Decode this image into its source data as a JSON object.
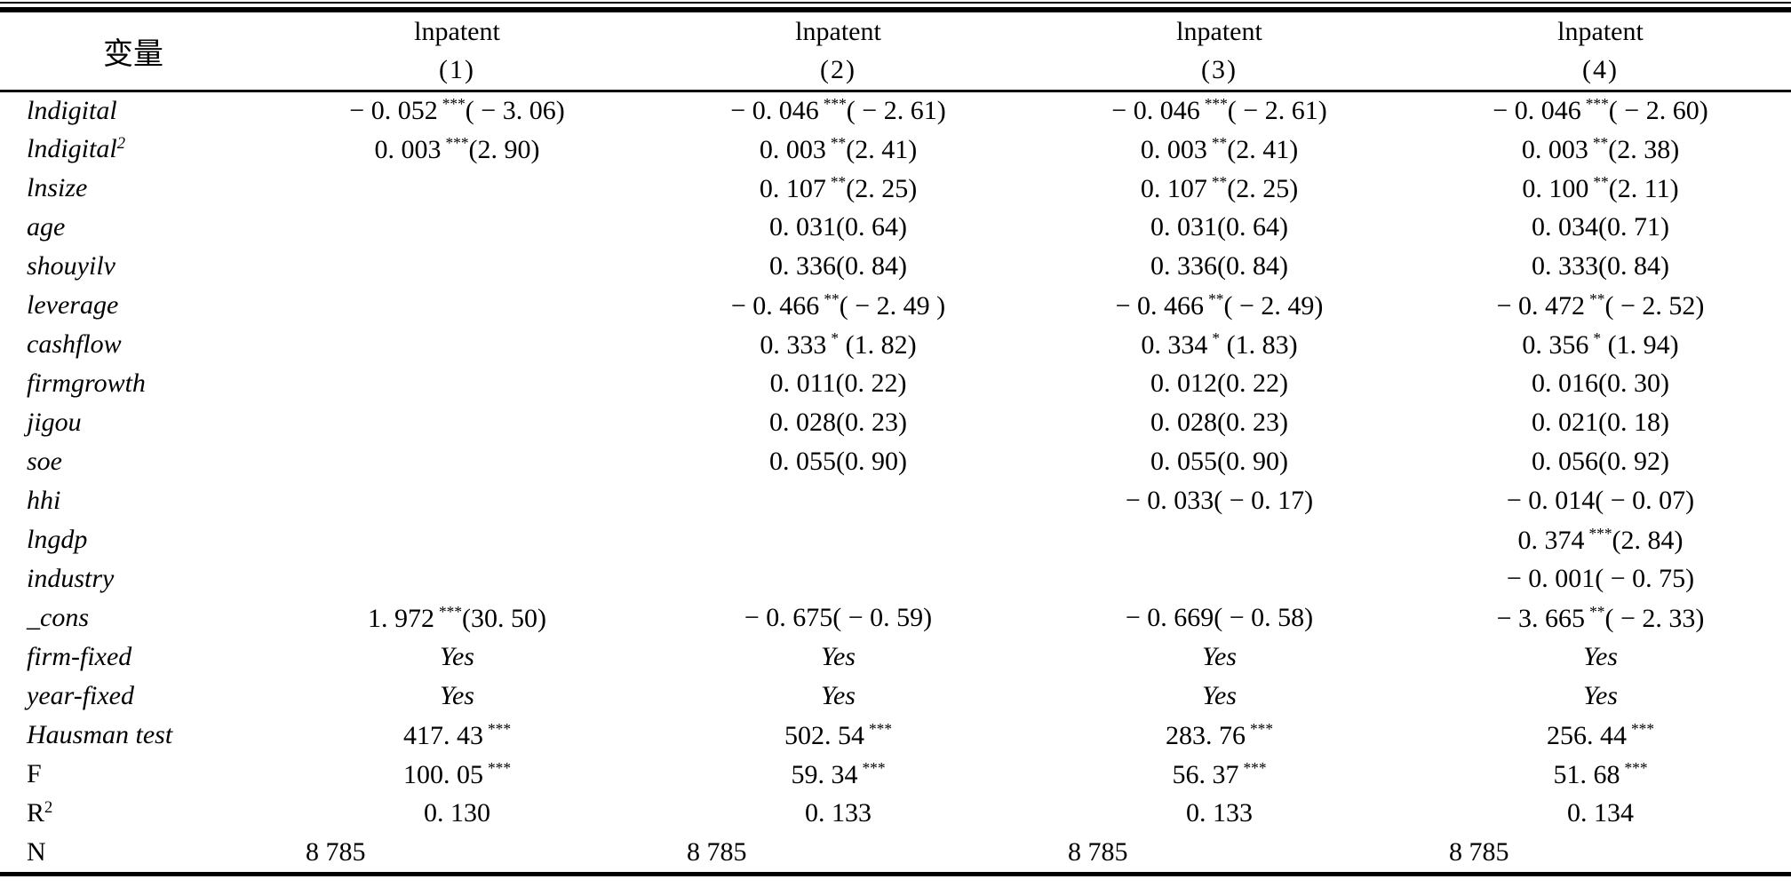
{
  "table": {
    "header": {
      "var_label": "变量",
      "dep_label": "lnpatent",
      "col_numbers": [
        "(1)",
        "(2)",
        "(3)",
        "(4)"
      ]
    },
    "rows": [
      {
        "key": "lndigital",
        "label": "lndigital",
        "sup": "",
        "cells": [
          {
            "coef": "− 0. 052",
            "stars": "***",
            "t": "( − 3. 06)"
          },
          {
            "coef": "− 0. 046",
            "stars": "***",
            "t": "( − 2. 61)"
          },
          {
            "coef": "− 0. 046",
            "stars": "***",
            "t": "( − 2. 61)"
          },
          {
            "coef": "− 0. 046",
            "stars": "***",
            "t": "( − 2. 60)"
          }
        ]
      },
      {
        "key": "lndigital-sq",
        "label": "lndigital",
        "sup": "2",
        "cells": [
          {
            "coef": "0. 003",
            "stars": "***",
            "t": "(2. 90)"
          },
          {
            "coef": "0. 003",
            "stars": "**",
            "t": "(2. 41)"
          },
          {
            "coef": "0. 003",
            "stars": "**",
            "t": "(2. 41)"
          },
          {
            "coef": "0. 003",
            "stars": "**",
            "t": "(2. 38)"
          }
        ]
      },
      {
        "key": "lnsize",
        "label": "lnsize",
        "sup": "",
        "cells": [
          null,
          {
            "coef": "0. 107",
            "stars": "**",
            "t": "(2. 25)"
          },
          {
            "coef": "0. 107",
            "stars": "**",
            "t": "(2. 25)"
          },
          {
            "coef": "0. 100",
            "stars": "**",
            "t": "(2. 11)"
          }
        ]
      },
      {
        "key": "age",
        "label": "age",
        "sup": "",
        "cells": [
          null,
          {
            "coef": "0. 031",
            "stars": "",
            "t": "(0. 64)"
          },
          {
            "coef": "0. 031",
            "stars": "",
            "t": "(0. 64)"
          },
          {
            "coef": "0. 034",
            "stars": "",
            "t": "(0. 71)"
          }
        ]
      },
      {
        "key": "shouyilv",
        "label": "shouyilv",
        "sup": "",
        "cells": [
          null,
          {
            "coef": "0. 336",
            "stars": "",
            "t": "(0. 84)"
          },
          {
            "coef": "0. 336",
            "stars": "",
            "t": "(0. 84)"
          },
          {
            "coef": "0. 333",
            "stars": "",
            "t": "(0. 84)"
          }
        ]
      },
      {
        "key": "leverage",
        "label": "leverage",
        "sup": "",
        "cells": [
          null,
          {
            "coef": "− 0. 466",
            "stars": "**",
            "t": "( − 2. 49 )"
          },
          {
            "coef": "− 0. 466",
            "stars": "**",
            "t": "( − 2. 49)"
          },
          {
            "coef": "− 0. 472",
            "stars": "**",
            "t": "( − 2. 52)"
          }
        ]
      },
      {
        "key": "cashflow",
        "label": "cashflow",
        "sup": "",
        "cells": [
          null,
          {
            "coef": "0. 333",
            "stars": "*",
            "t": " (1. 82)"
          },
          {
            "coef": "0. 334",
            "stars": "*",
            "t": " (1. 83)"
          },
          {
            "coef": "0. 356",
            "stars": "*",
            "t": " (1. 94)"
          }
        ]
      },
      {
        "key": "firmgrowth",
        "label": "firmgrowth",
        "sup": "",
        "cells": [
          null,
          {
            "coef": "0. 011",
            "stars": "",
            "t": "(0. 22)"
          },
          {
            "coef": "0. 012",
            "stars": "",
            "t": "(0. 22)"
          },
          {
            "coef": "0. 016",
            "stars": "",
            "t": "(0. 30)"
          }
        ]
      },
      {
        "key": "jigou",
        "label": "jigou",
        "sup": "",
        "cells": [
          null,
          {
            "coef": "0. 028",
            "stars": "",
            "t": "(0. 23)"
          },
          {
            "coef": "0. 028",
            "stars": "",
            "t": "(0. 23)"
          },
          {
            "coef": "0. 021",
            "stars": "",
            "t": "(0. 18)"
          }
        ]
      },
      {
        "key": "soe",
        "label": "soe",
        "sup": "",
        "cells": [
          null,
          {
            "coef": "0. 055",
            "stars": "",
            "t": "(0. 90)"
          },
          {
            "coef": "0. 055",
            "stars": "",
            "t": "(0. 90)"
          },
          {
            "coef": "0. 056",
            "stars": "",
            "t": "(0. 92)"
          }
        ]
      },
      {
        "key": "hhi",
        "label": "hhi",
        "sup": "",
        "cells": [
          null,
          null,
          {
            "coef": "− 0. 033",
            "stars": "",
            "t": "( − 0. 17)"
          },
          {
            "coef": "− 0. 014",
            "stars": "",
            "t": "( − 0. 07)"
          }
        ]
      },
      {
        "key": "lngdp",
        "label": "lngdp",
        "sup": "",
        "cells": [
          null,
          null,
          null,
          {
            "coef": "0. 374",
            "stars": "***",
            "t": "(2. 84)"
          }
        ]
      },
      {
        "key": "industry",
        "label": "industry",
        "sup": "",
        "cells": [
          null,
          null,
          null,
          {
            "coef": "− 0. 001",
            "stars": "",
            "t": "( − 0. 75)"
          }
        ]
      },
      {
        "key": "cons",
        "label": "_cons",
        "sup": "",
        "cells": [
          {
            "coef": "1. 972",
            "stars": "***",
            "t": "(30. 50)"
          },
          {
            "coef": "− 0. 675",
            "stars": "",
            "t": "( − 0. 59)"
          },
          {
            "coef": "− 0. 669",
            "stars": "",
            "t": "( − 0. 58)"
          },
          {
            "coef": "− 3. 665",
            "stars": "**",
            "t": "( − 2. 33)"
          }
        ]
      },
      {
        "key": "firm-fixed",
        "label": "firm-fixed",
        "sup": "",
        "cells": [
          {
            "coef": "Yes",
            "stars": "",
            "t": "",
            "italic": true
          },
          {
            "coef": "Yes",
            "stars": "",
            "t": "",
            "italic": true
          },
          {
            "coef": "Yes",
            "stars": "",
            "t": "",
            "italic": true
          },
          {
            "coef": "Yes",
            "stars": "",
            "t": "",
            "italic": true
          }
        ]
      },
      {
        "key": "year-fixed",
        "label": "year-fixed",
        "sup": "",
        "cells": [
          {
            "coef": "Yes",
            "stars": "",
            "t": "",
            "italic": true
          },
          {
            "coef": "Yes",
            "stars": "",
            "t": "",
            "italic": true
          },
          {
            "coef": "Yes",
            "stars": "",
            "t": "",
            "italic": true
          },
          {
            "coef": "Yes",
            "stars": "",
            "t": "",
            "italic": true
          }
        ]
      },
      {
        "key": "hausman-test",
        "label": "Hausman test",
        "sup": "",
        "cells": [
          {
            "coef": "417. 43",
            "stars": "***",
            "t": ""
          },
          {
            "coef": "502. 54",
            "stars": "***",
            "t": ""
          },
          {
            "coef": "283. 76",
            "stars": "***",
            "t": ""
          },
          {
            "coef": "256. 44",
            "stars": "***",
            "t": ""
          }
        ]
      },
      {
        "key": "f-stat",
        "label": "F",
        "sup": "",
        "upright": true,
        "cells": [
          {
            "coef": "100. 05",
            "stars": "***",
            "t": ""
          },
          {
            "coef": "59. 34",
            "stars": "***",
            "t": ""
          },
          {
            "coef": "56. 37",
            "stars": "***",
            "t": ""
          },
          {
            "coef": "51. 68",
            "stars": "***",
            "t": ""
          }
        ]
      },
      {
        "key": "r-squared",
        "label": "R",
        "sup": "2",
        "upright": true,
        "cells": [
          {
            "coef": "0. 130",
            "stars": "",
            "t": ""
          },
          {
            "coef": "0. 133",
            "stars": "",
            "t": ""
          },
          {
            "coef": "0. 133",
            "stars": "",
            "t": ""
          },
          {
            "coef": "0. 134",
            "stars": "",
            "t": ""
          }
        ]
      },
      {
        "key": "n-obs",
        "label": "N",
        "sup": "",
        "upright": true,
        "align": "left",
        "cells": [
          {
            "coef": "8 785",
            "stars": "",
            "t": ""
          },
          {
            "coef": "8 785",
            "stars": "",
            "t": ""
          },
          {
            "coef": "8 785",
            "stars": "",
            "t": ""
          },
          {
            "coef": "8 785",
            "stars": "",
            "t": ""
          }
        ]
      }
    ]
  }
}
